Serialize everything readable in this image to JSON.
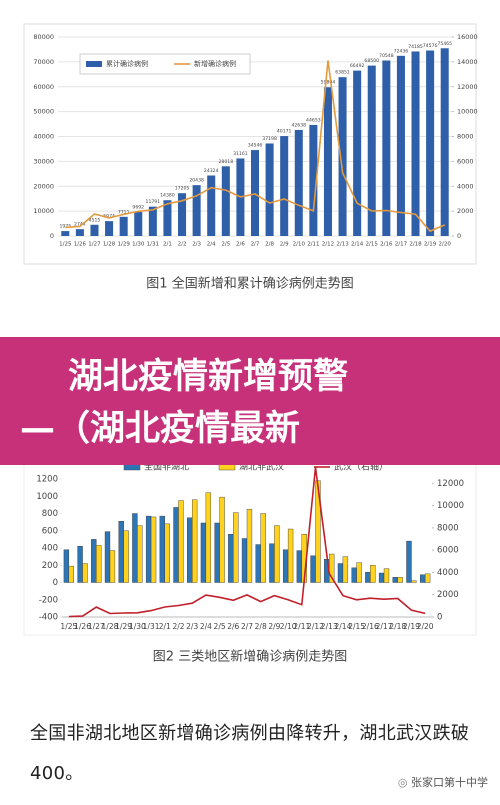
{
  "chart_data": [
    {
      "type": "combo",
      "caption": "图1 全国新增和累计确诊病例走势图",
      "categories": [
        "1/25",
        "1/26",
        "1/27",
        "1/28",
        "1/29",
        "1/30",
        "1/31",
        "2/1",
        "2/2",
        "2/3",
        "2/4",
        "2/5",
        "2/6",
        "2/7",
        "2/8",
        "2/9",
        "2/10",
        "2/11",
        "2/12",
        "2/13",
        "2/14",
        "2/15",
        "2/16",
        "2/17",
        "2/18",
        "2/19",
        "2/20"
      ],
      "series": [
        {
          "name": "累计确诊病例",
          "type": "bar",
          "color": "#2f5fa8",
          "show_values": true,
          "values": [
            1975,
            2744,
            4515,
            5974,
            7711,
            9692,
            11791,
            14380,
            17205,
            20438,
            24324,
            28018,
            31161,
            34546,
            37198,
            40171,
            42638,
            44653,
            59804,
            63851,
            66492,
            68500,
            70548,
            72436,
            74185,
            74576,
            75465
          ]
        },
        {
          "name": "新增确诊病例",
          "type": "line",
          "color": "#e39a3e",
          "axis": "y2",
          "values": [
            688,
            769,
            1771,
            1459,
            1737,
            1982,
            2102,
            2590,
            2829,
            3235,
            3887,
            3694,
            3143,
            3385,
            2652,
            2973,
            2467,
            2015,
            14108,
            5090,
            2641,
            2008,
            2048,
            1886,
            1749,
            394,
            889
          ]
        }
      ],
      "ylim": [
        0,
        80000
      ],
      "yticks": [
        0,
        10000,
        20000,
        30000,
        40000,
        50000,
        60000,
        70000,
        80000
      ],
      "y2lim": [
        0,
        16000
      ],
      "y2ticks": [
        0,
        2000,
        4000,
        6000,
        8000,
        10000,
        12000,
        14000,
        16000
      ],
      "grid": true,
      "legend": "upper left"
    },
    {
      "type": "combo",
      "caption": "图2 三类地区新增确诊病例走势图",
      "categories": [
        "1/25",
        "1/26",
        "1/27",
        "1/28",
        "1/29",
        "1/30",
        "1/31",
        "2/1",
        "2/2",
        "2/3",
        "2/4",
        "2/5",
        "2/6",
        "2/7",
        "2/8",
        "2/9",
        "2/10",
        "2/11",
        "2/12",
        "2/13",
        "2/14",
        "2/15",
        "2/16",
        "2/17",
        "2/18",
        "2/19",
        "2/20"
      ],
      "series": [
        {
          "name": "全国非湖北",
          "type": "bar",
          "color": "#2e75b6",
          "values": [
            380,
            420,
            500,
            590,
            710,
            800,
            770,
            770,
            870,
            750,
            690,
            690,
            560,
            510,
            440,
            450,
            380,
            370,
            310,
            270,
            220,
            170,
            120,
            110,
            60,
            480,
            90
          ]
        },
        {
          "name": "湖北非武汉",
          "type": "bar",
          "color": "#ffd21f",
          "values": [
            190,
            220,
            430,
            370,
            600,
            660,
            760,
            680,
            950,
            960,
            1040,
            990,
            810,
            850,
            800,
            660,
            620,
            560,
            1180,
            330,
            300,
            230,
            200,
            160,
            60,
            20,
            100
          ]
        },
        {
          "name": "武汉（右轴）",
          "type": "line",
          "color": "#c0202a",
          "axis": "y2",
          "values": [
            46,
            80,
            892,
            315,
            356,
            378,
            576,
            894,
            1033,
            1242,
            1967,
            1766,
            1501,
            1985,
            1379,
            1920,
            1552,
            1104,
            13436,
            3910,
            1923,
            1548,
            1690,
            1600,
            1660,
            615,
            319
          ]
        }
      ],
      "ylim": [
        -400,
        1200
      ],
      "yticks": [
        -400,
        -200,
        0,
        200,
        400,
        600,
        800,
        1000,
        1200
      ],
      "y2lim": [
        0,
        14000
      ],
      "y2ticks": [
        0,
        2000,
        4000,
        6000,
        8000,
        10000,
        12000
      ],
      "grid": false,
      "legend": "upper center"
    }
  ],
  "banner": {
    "lines": [
      "湖北疫情新增预警",
      "—（湖北疫情最新"
    ]
  },
  "body": {
    "text": "全国非湖北地区新增确诊病例由降转升，湖北武汉跌破400。"
  },
  "footer": {
    "text": "张家口第十中学"
  }
}
